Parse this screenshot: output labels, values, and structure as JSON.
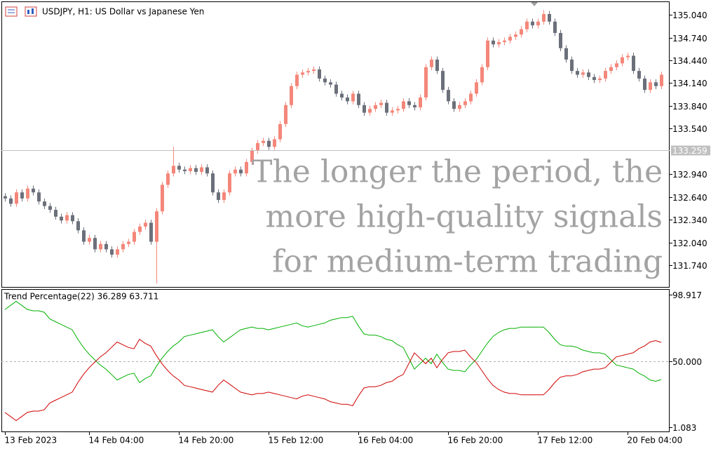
{
  "chart_data": [
    {
      "type": "candlestick",
      "title": "USDJPY, H1:  US Dollar vs Japanese Yen",
      "annotations": [
        "The longer the period, the",
        "more high-quality signals",
        "for medium-term trading"
      ],
      "open": [
        132.65,
        132.62,
        132.55,
        132.7,
        132.62,
        132.75,
        132.7,
        132.58,
        132.52,
        132.47,
        132.38,
        132.33,
        132.4,
        132.32,
        132.2,
        132.05,
        132.1,
        131.95,
        132.02,
        131.95,
        131.88,
        131.95,
        132.02,
        132.05,
        132.18,
        132.25,
        132.3,
        132.05,
        132.45,
        132.8,
        132.95,
        133.05,
        133.0,
        132.98,
        133.02,
        132.97,
        133.03,
        132.95,
        132.7,
        132.6,
        132.7,
        132.95,
        133.0,
        132.95,
        133.1,
        133.25,
        133.35,
        133.38,
        133.3,
        133.4,
        133.6,
        133.85,
        134.1,
        134.25,
        134.28,
        134.3,
        134.32,
        134.2,
        134.15,
        134.12,
        134.0,
        133.95,
        133.9,
        134.0,
        133.85,
        133.75,
        133.8,
        133.85,
        133.88,
        133.75,
        133.78,
        133.8,
        133.9,
        133.85,
        133.82,
        133.95,
        134.35,
        134.45,
        134.3,
        134.05,
        133.9,
        133.8,
        133.85,
        133.9,
        134.0,
        134.15,
        134.35,
        134.7,
        134.65,
        134.68,
        134.7,
        134.75,
        134.78,
        134.85,
        134.95,
        134.9,
        134.95,
        135.05,
        134.95,
        134.8,
        134.6,
        134.45,
        134.3,
        134.25,
        134.28,
        134.22,
        134.18,
        134.2,
        134.3,
        134.35,
        134.4,
        134.48,
        134.5,
        134.3,
        134.2,
        134.05,
        134.15,
        134.1
      ],
      "high": [
        132.69,
        132.66,
        132.74,
        132.74,
        132.79,
        132.79,
        132.74,
        132.62,
        132.56,
        132.51,
        132.42,
        132.44,
        132.44,
        132.36,
        132.24,
        132.14,
        132.14,
        132.06,
        132.06,
        131.99,
        131.99,
        132.06,
        132.09,
        132.22,
        132.29,
        132.34,
        132.34,
        132.49,
        132.84,
        132.99,
        133.3,
        133.09,
        133.04,
        133.06,
        133.06,
        133.07,
        133.07,
        132.99,
        132.74,
        132.74,
        132.99,
        133.04,
        133.04,
        133.14,
        133.29,
        133.39,
        133.42,
        133.42,
        133.44,
        133.64,
        133.89,
        134.14,
        134.29,
        134.32,
        134.34,
        134.36,
        134.36,
        134.24,
        134.19,
        134.16,
        134.04,
        133.99,
        134.04,
        134.04,
        133.89,
        133.84,
        133.89,
        133.92,
        133.92,
        133.82,
        133.84,
        133.94,
        133.94,
        133.89,
        133.99,
        134.39,
        134.49,
        134.49,
        134.34,
        134.09,
        133.94,
        133.89,
        133.94,
        134.04,
        134.19,
        134.39,
        134.74,
        134.74,
        134.72,
        134.74,
        134.79,
        134.82,
        134.89,
        134.99,
        134.99,
        134.99,
        135.1,
        135.09,
        134.99,
        134.84,
        134.64,
        134.49,
        134.34,
        134.32,
        134.32,
        134.26,
        134.24,
        134.34,
        134.39,
        134.44,
        134.52,
        134.54,
        134.54,
        134.34,
        134.24,
        134.19,
        134.19,
        134.29
      ],
      "low": [
        132.58,
        132.51,
        132.51,
        132.58,
        132.58,
        132.66,
        132.54,
        132.48,
        132.43,
        132.34,
        132.29,
        132.29,
        132.28,
        132.16,
        132.01,
        132.01,
        131.91,
        131.91,
        131.91,
        131.84,
        131.84,
        131.91,
        131.98,
        132.01,
        132.14,
        132.21,
        132.01,
        131.5,
        132.41,
        132.76,
        132.91,
        132.96,
        132.94,
        132.94,
        132.93,
        132.93,
        132.91,
        132.66,
        132.56,
        132.56,
        132.66,
        132.91,
        132.91,
        132.91,
        133.06,
        133.21,
        133.31,
        133.26,
        133.26,
        133.36,
        133.56,
        133.81,
        134.06,
        134.21,
        134.24,
        134.26,
        134.16,
        134.11,
        134.08,
        133.96,
        133.91,
        133.86,
        133.86,
        133.81,
        133.71,
        133.71,
        133.76,
        133.81,
        133.71,
        133.71,
        133.74,
        133.76,
        133.81,
        133.78,
        133.78,
        133.91,
        134.31,
        134.26,
        134.01,
        133.86,
        133.76,
        133.76,
        133.81,
        133.86,
        133.96,
        134.11,
        134.31,
        134.61,
        134.61,
        134.64,
        134.66,
        134.71,
        134.74,
        134.81,
        134.86,
        134.86,
        134.91,
        134.91,
        134.76,
        134.56,
        134.41,
        134.26,
        134.21,
        134.21,
        134.18,
        134.14,
        134.14,
        134.16,
        134.26,
        134.31,
        134.36,
        134.44,
        134.26,
        134.16,
        134.01,
        134.01,
        134.06,
        134.06
      ],
      "close": [
        132.62,
        132.55,
        132.7,
        132.62,
        132.75,
        132.7,
        132.58,
        132.52,
        132.47,
        132.38,
        132.33,
        132.4,
        132.32,
        132.2,
        132.05,
        132.1,
        131.95,
        132.02,
        131.95,
        131.88,
        131.95,
        132.02,
        132.05,
        132.18,
        132.25,
        132.3,
        132.05,
        132.45,
        132.8,
        132.95,
        133.05,
        133.0,
        132.98,
        133.02,
        132.97,
        133.03,
        132.95,
        132.7,
        132.6,
        132.7,
        132.95,
        133.0,
        132.95,
        133.1,
        133.25,
        133.35,
        133.38,
        133.3,
        133.4,
        133.6,
        133.85,
        134.1,
        134.25,
        134.28,
        134.3,
        134.32,
        134.2,
        134.15,
        134.12,
        134.0,
        133.95,
        133.9,
        134.0,
        133.85,
        133.75,
        133.8,
        133.85,
        133.88,
        133.75,
        133.78,
        133.8,
        133.9,
        133.85,
        133.82,
        133.95,
        134.35,
        134.45,
        134.3,
        134.05,
        133.9,
        133.8,
        133.85,
        133.9,
        134.0,
        134.15,
        134.35,
        134.7,
        134.65,
        134.68,
        134.7,
        134.75,
        134.78,
        134.85,
        134.95,
        134.9,
        134.95,
        135.05,
        134.95,
        134.8,
        134.6,
        134.45,
        134.3,
        134.25,
        134.28,
        134.22,
        134.18,
        134.2,
        134.3,
        134.35,
        134.4,
        134.48,
        134.5,
        134.3,
        134.2,
        134.05,
        134.15,
        134.1,
        134.25
      ],
      "up_color": "#f4877a",
      "down_color": "#6b707a",
      "current_price": 133.259,
      "current_price_color": "#c0c0c0",
      "xlim": [
        -0.625,
        118.5
      ],
      "ylim": [
        131.445,
        135.216
      ],
      "yticks": [
        {
          "value": 135.04,
          "label": "135.040"
        },
        {
          "value": 134.74,
          "label": "134.740"
        },
        {
          "value": 134.44,
          "label": "134.440"
        },
        {
          "value": 134.14,
          "label": "134.140"
        },
        {
          "value": 133.84,
          "label": "133.840"
        },
        {
          "value": 133.54,
          "label": "133.540"
        },
        {
          "value": 132.94,
          "label": "132.940"
        },
        {
          "value": 132.64,
          "label": "132.640"
        },
        {
          "value": 132.34,
          "label": "132.340"
        },
        {
          "value": 132.04,
          "label": "132.040"
        },
        {
          "value": 131.74,
          "label": "131.740"
        }
      ]
    },
    {
      "type": "line",
      "title": "Trend Percentage(22) 36.289 63.711",
      "series": [
        {
          "color": "#00b000",
          "values": [
            88,
            91,
            94,
            91,
            88,
            87,
            87,
            86,
            81,
            79,
            77,
            75,
            73,
            66,
            60,
            55,
            51,
            47,
            44,
            40,
            36,
            38,
            40,
            41,
            34,
            37,
            39,
            46,
            52,
            57,
            61,
            64,
            68,
            69,
            70,
            71,
            72,
            73,
            68,
            64,
            67,
            70,
            73,
            74,
            75,
            74,
            74,
            73,
            74,
            75,
            76,
            77,
            78,
            76,
            75,
            76,
            77,
            78,
            80,
            81,
            82,
            82,
            83,
            76,
            70,
            69,
            69,
            68,
            66,
            65,
            62,
            60,
            52,
            44,
            48,
            52,
            48,
            55,
            49,
            44,
            43,
            43,
            42,
            47,
            51,
            57,
            63,
            68,
            71,
            73,
            74,
            74,
            75,
            75,
            75,
            75,
            75,
            71,
            66,
            62,
            61,
            61,
            60,
            58,
            57,
            56,
            56,
            55,
            51,
            47,
            46,
            45,
            44,
            41,
            39,
            36,
            35,
            36.289
          ]
        },
        {
          "color": "#d00000",
          "values": [
            12,
            9,
            6,
            9,
            12,
            13,
            13,
            14,
            19,
            21,
            23,
            25,
            27,
            34,
            40,
            45,
            49,
            53,
            56,
            60,
            64,
            62,
            60,
            59,
            66,
            63,
            61,
            54,
            48,
            43,
            39,
            36,
            32,
            31,
            30,
            29,
            28,
            27,
            32,
            36,
            33,
            30,
            27,
            26,
            25,
            26,
            26,
            27,
            26,
            25,
            24,
            23,
            22,
            24,
            25,
            24,
            23,
            22,
            20,
            19,
            18,
            18,
            17,
            24,
            30,
            31,
            31,
            32,
            34,
            35,
            38,
            40,
            48,
            56,
            52,
            48,
            52,
            45,
            51,
            56,
            57,
            57,
            58,
            53,
            49,
            43,
            37,
            32,
            29,
            27,
            26,
            26,
            25,
            25,
            25,
            25,
            25,
            29,
            34,
            38,
            39,
            39,
            40,
            42,
            43,
            44,
            44,
            45,
            49,
            53,
            54,
            55,
            56,
            59,
            61,
            64,
            65,
            63.711
          ]
        }
      ],
      "levels": [
        50
      ],
      "xlim": [
        -0.625,
        118.5
      ],
      "xticks": [
        {
          "value": 0,
          "label": "13 Feb 2023"
        },
        {
          "value": 15,
          "label": "14 Feb 04:00"
        },
        {
          "value": 31,
          "label": "14 Feb 20:00"
        },
        {
          "value": 47,
          "label": "15 Feb 12:00"
        },
        {
          "value": 63,
          "label": "16 Feb 04:00"
        },
        {
          "value": 79,
          "label": "16 Feb 20:00"
        },
        {
          "value": 95,
          "label": "17 Feb 12:00"
        },
        {
          "value": 111,
          "label": "20 Feb 04:00"
        }
      ],
      "ylim": [
        -2.02,
        103.06
      ],
      "yticks": [
        {
          "value": 98.917,
          "label": "98.917"
        },
        {
          "value": 50,
          "label": "50.000"
        },
        {
          "value": 1.083,
          "label": "1.083"
        }
      ]
    }
  ]
}
